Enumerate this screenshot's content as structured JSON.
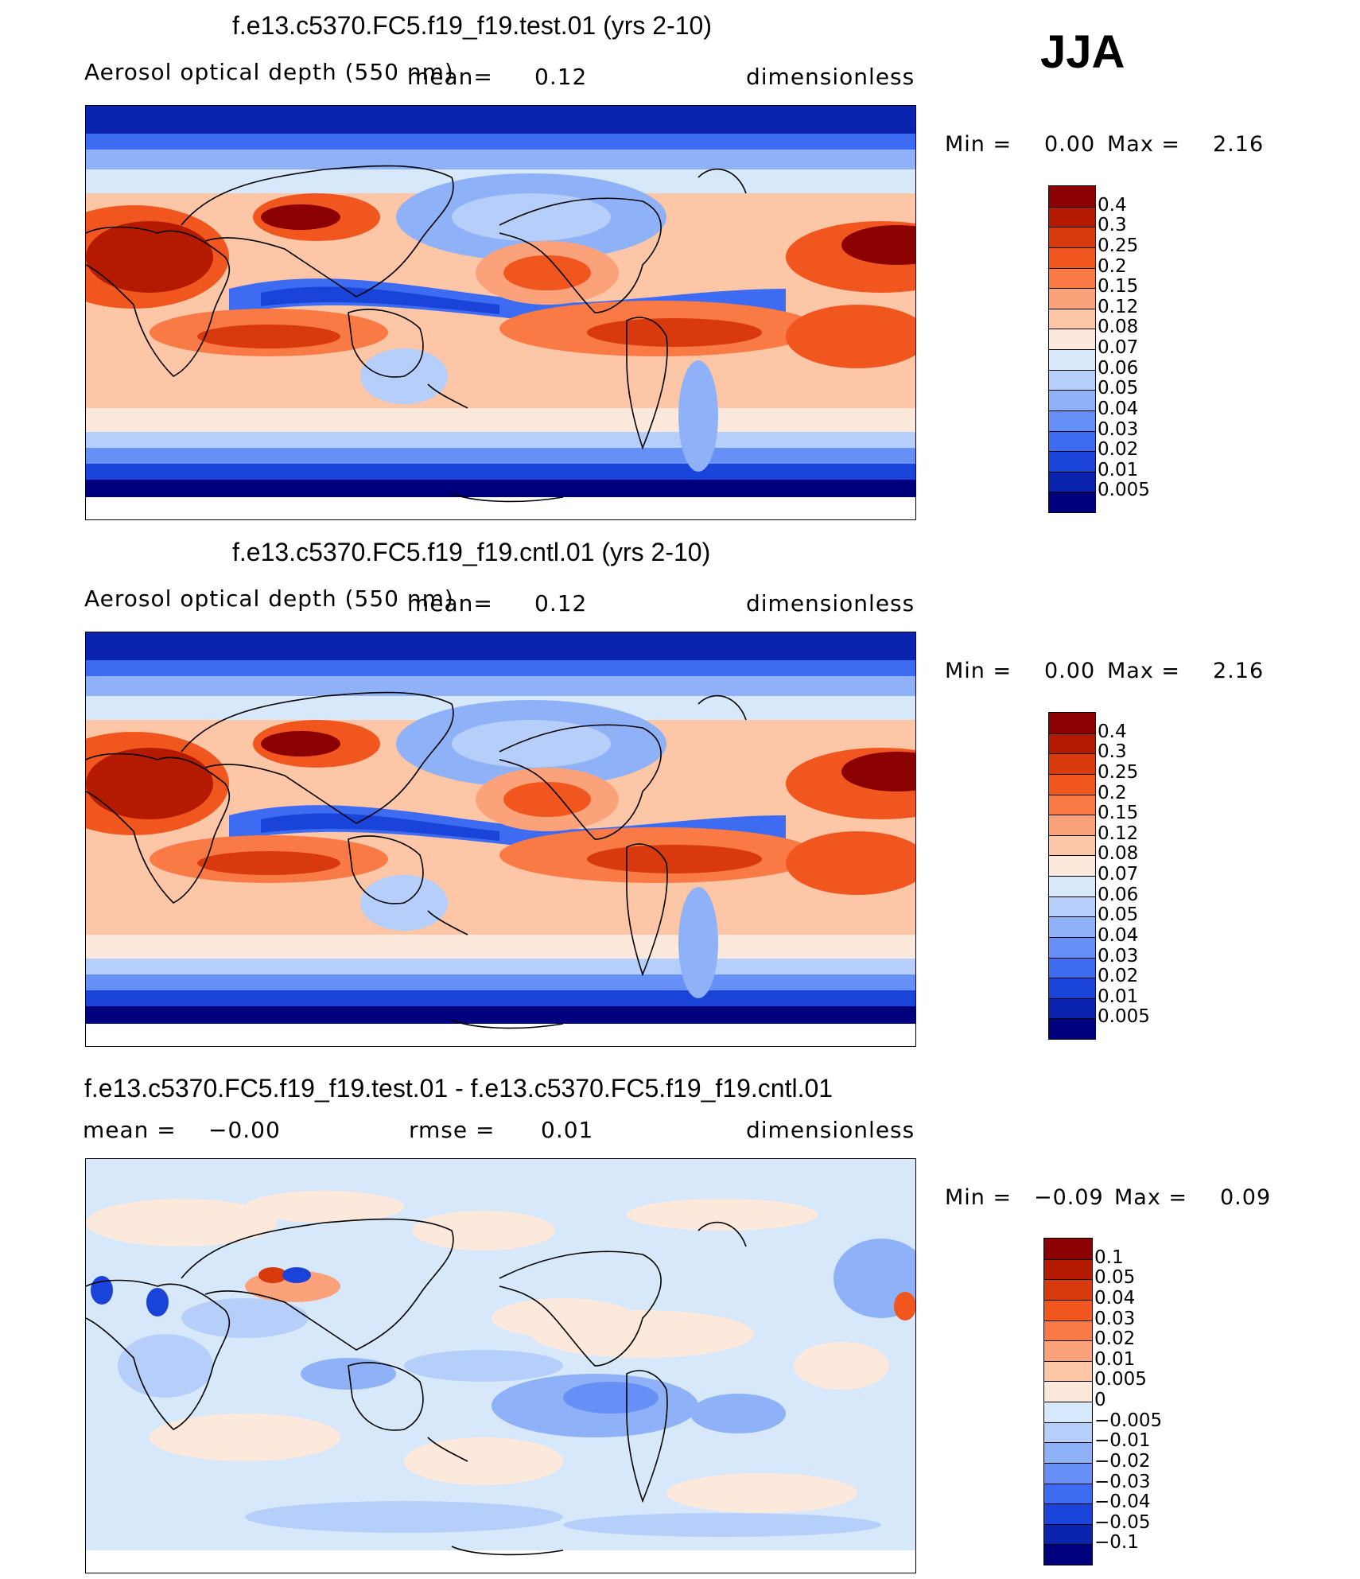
{
  "season": "JJA",
  "panels": [
    {
      "title": "f.e13.c5370.FC5.f19_f19.test.01 (yrs 2-10)",
      "variable": "Aerosol optical depth (550 nm)",
      "mean_label": "mean=",
      "mean_value": "0.12",
      "units": "dimensionless",
      "min_label": "Min =",
      "min_value": "0.00",
      "max_label": "Max =",
      "max_value": "2.16"
    },
    {
      "title": "f.e13.c5370.FC5.f19_f19.cntl.01 (yrs 2-10)",
      "variable": "Aerosol optical depth (550 nm)",
      "mean_label": "mean=",
      "mean_value": "0.12",
      "units": "dimensionless",
      "min_label": "Min =",
      "min_value": "0.00",
      "max_label": "Max =",
      "max_value": "2.16"
    },
    {
      "title": "f.e13.c5370.FC5.f19_f19.test.01 - f.e13.c5370.FC5.f19_f19.cntl.01",
      "mean_label": "mean =",
      "mean_value": "−0.00",
      "rmse_label": "rmse =",
      "rmse_value": "0.01",
      "units": "dimensionless",
      "min_label": "Min =",
      "min_value": "−0.09",
      "max_label": "Max =",
      "max_value": "0.09"
    }
  ],
  "colorbars": {
    "aod": {
      "labels": [
        "0.4",
        "0.3",
        "0.25",
        "0.2",
        "0.15",
        "0.12",
        "0.08",
        "0.07",
        "0.06",
        "0.05",
        "0.04",
        "0.03",
        "0.02",
        "0.01",
        "0.005"
      ],
      "colors": [
        "#8b0000",
        "#b31a00",
        "#d93a0d",
        "#f2561f",
        "#fa7a45",
        "#fca27a",
        "#fcc6a7",
        "#fde9dc",
        "#d8e8fb",
        "#b5cffa",
        "#8fb1f7",
        "#6690f5",
        "#3d6cf2",
        "#1a44d9",
        "#0a24b0",
        "#00007e"
      ]
    },
    "diff": {
      "labels": [
        "0.1",
        "0.05",
        "0.04",
        "0.03",
        "0.02",
        "0.01",
        "0.005",
        "0",
        "−0.005",
        "−0.01",
        "−0.02",
        "−0.03",
        "−0.04",
        "−0.05",
        "−0.1"
      ],
      "colors": [
        "#8b0000",
        "#b31a00",
        "#d93a0d",
        "#f2561f",
        "#fa7a45",
        "#fca27a",
        "#fcc6a7",
        "#fde9dc",
        "#d8e8fb",
        "#b5cffa",
        "#8fb1f7",
        "#6690f5",
        "#3d6cf2",
        "#1a44d9",
        "#0a24b0",
        "#00007e"
      ]
    }
  }
}
